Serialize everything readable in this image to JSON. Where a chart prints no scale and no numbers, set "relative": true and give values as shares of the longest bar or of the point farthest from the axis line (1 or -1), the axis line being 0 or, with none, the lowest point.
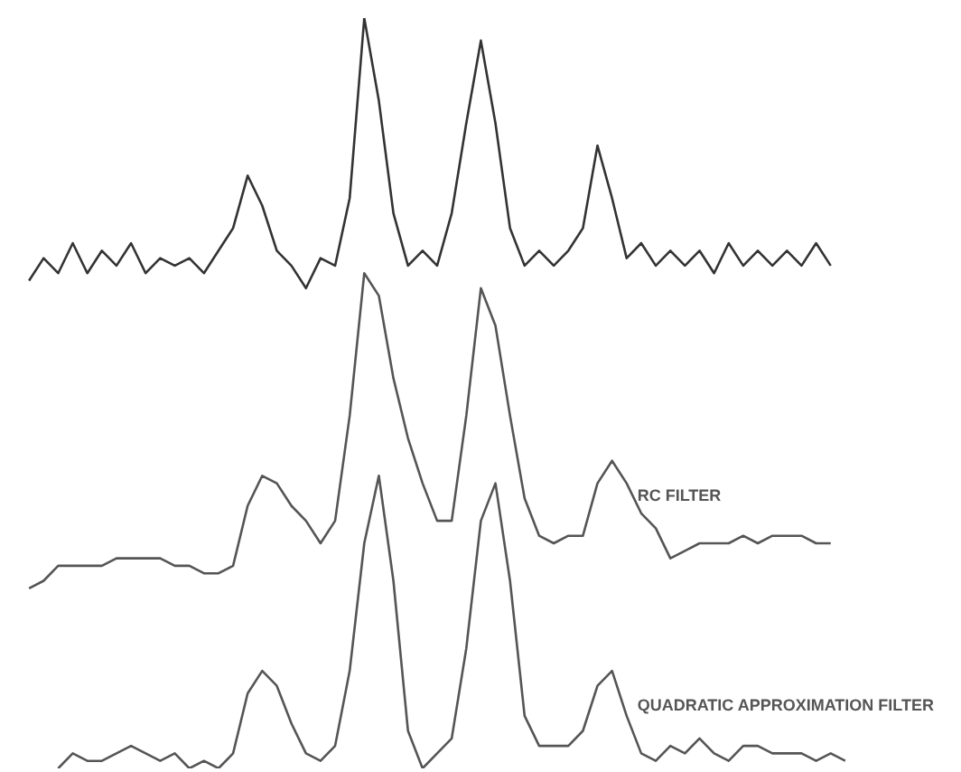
{
  "chart_data": {
    "type": "line",
    "relative": true,
    "legend": false,
    "marker": "none",
    "categories": [
      null,
      null,
      null,
      null,
      null,
      null,
      null,
      null,
      null,
      null,
      null,
      null,
      null,
      null,
      null,
      null,
      null,
      null,
      null,
      null,
      null,
      null,
      null,
      null,
      null,
      null,
      null,
      null,
      null,
      null,
      null,
      null,
      null,
      null,
      null,
      null,
      null,
      null,
      null,
      null,
      null,
      null,
      null,
      null,
      null,
      null,
      null,
      null,
      null,
      null,
      null,
      null,
      null,
      null,
      null,
      null,
      null,
      null,
      null
    ],
    "series": [
      {
        "color": "#333333",
        "values": [
          null,
          0.65,
          0.68,
          0.66,
          0.7,
          0.66,
          0.69,
          0.67,
          0.7,
          0.66,
          0.68,
          0.67,
          0.68,
          0.66,
          0.69,
          0.72,
          0.79,
          0.75,
          0.69,
          0.67,
          0.64,
          0.68,
          0.67,
          0.76,
          1.0,
          0.89,
          0.74,
          0.67,
          0.69,
          0.67,
          0.74,
          0.86,
          0.97,
          0.86,
          0.72,
          0.67,
          0.69,
          0.67,
          0.69,
          0.72,
          0.83,
          0.76,
          0.68,
          0.7,
          0.67,
          0.69,
          0.67,
          0.69,
          0.66,
          0.7,
          0.67,
          0.69,
          0.67,
          0.69,
          0.67,
          0.7,
          0.67,
          null,
          null
        ]
      },
      {
        "name": "RC FILTER",
        "color": "#555555",
        "values": [
          null,
          0.24,
          0.25,
          0.27,
          0.27,
          0.27,
          0.27,
          0.28,
          0.28,
          0.28,
          0.28,
          0.27,
          0.27,
          0.26,
          0.26,
          0.27,
          0.35,
          0.39,
          0.38,
          0.35,
          0.33,
          0.3,
          0.33,
          0.47,
          0.66,
          0.63,
          0.52,
          0.44,
          0.38,
          0.33,
          0.33,
          0.47,
          0.64,
          0.59,
          0.47,
          0.36,
          0.31,
          0.3,
          0.31,
          0.31,
          0.38,
          0.41,
          0.38,
          0.34,
          0.32,
          0.28,
          0.29,
          0.3,
          0.3,
          0.3,
          0.31,
          0.3,
          0.31,
          0.31,
          0.31,
          0.3,
          0.3,
          null,
          null
        ]
      },
      {
        "name": "QUADRATIC APPROXIMATION FILTER",
        "color": "#555555",
        "values": [
          null,
          null,
          null,
          0.0,
          0.02,
          0.01,
          0.01,
          0.02,
          0.03,
          0.02,
          0.01,
          0.02,
          0.0,
          0.01,
          0.0,
          0.02,
          0.1,
          0.13,
          0.11,
          0.06,
          0.02,
          0.01,
          0.03,
          0.13,
          0.3,
          0.39,
          0.25,
          0.05,
          0.0,
          0.02,
          0.04,
          0.16,
          0.33,
          0.38,
          0.25,
          0.07,
          0.03,
          0.03,
          0.03,
          0.05,
          0.11,
          0.13,
          0.07,
          0.02,
          0.01,
          0.03,
          0.02,
          0.04,
          0.02,
          0.01,
          0.03,
          0.03,
          0.02,
          0.02,
          0.02,
          0.01,
          0.02,
          0.01,
          null
        ]
      }
    ]
  }
}
